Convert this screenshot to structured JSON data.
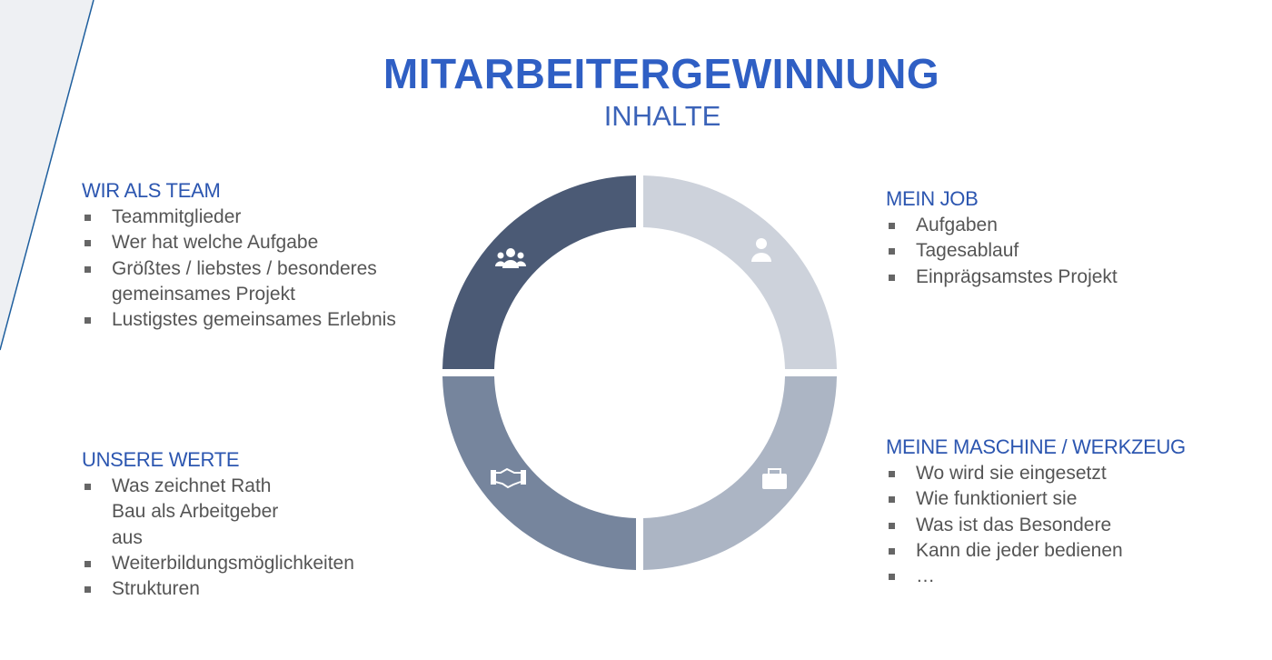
{
  "header": {
    "title": "MITARBEITERGEWINNUNG",
    "subtitle": "INHALTE"
  },
  "sections": [
    {
      "title": "WIR ALS TEAM",
      "items": [
        "Teammitglieder",
        "Wer hat welche Aufgabe",
        "Größtes / liebstes / besonderes gemeinsames Projekt",
        "Lustigstes gemeinsames Erlebnis"
      ]
    },
    {
      "title": "MEIN JOB",
      "items": [
        "Aufgaben",
        "Tagesablauf",
        "Einprägsamstes Projekt"
      ]
    },
    {
      "title": "UNSERE WERTE",
      "items": [
        "Was zeichnet Rath Bau als Arbeitgeber aus",
        "Weiterbildungsmöglichkeiten",
        "Strukturen"
      ]
    },
    {
      "title": "MEINE MASCHINE / WERKZEUG",
      "items": [
        "Wo wird sie eingesetzt",
        "Wie funktioniert sie",
        "Was ist das Besondere",
        "Kann die jeder bedienen",
        "…"
      ]
    }
  ]
}
